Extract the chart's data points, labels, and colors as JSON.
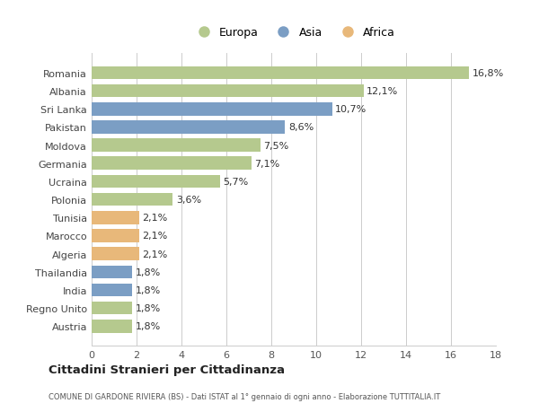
{
  "countries": [
    "Romania",
    "Albania",
    "Sri Lanka",
    "Pakistan",
    "Moldova",
    "Germania",
    "Ucraina",
    "Polonia",
    "Tunisia",
    "Marocco",
    "Algeria",
    "Thailandia",
    "India",
    "Regno Unito",
    "Austria"
  ],
  "values": [
    16.8,
    12.1,
    10.7,
    8.6,
    7.5,
    7.1,
    5.7,
    3.6,
    2.1,
    2.1,
    2.1,
    1.8,
    1.8,
    1.8,
    1.8
  ],
  "continents": [
    "Europa",
    "Europa",
    "Asia",
    "Asia",
    "Europa",
    "Europa",
    "Europa",
    "Europa",
    "Africa",
    "Africa",
    "Africa",
    "Asia",
    "Asia",
    "Europa",
    "Europa"
  ],
  "colors": {
    "Europa": "#b5c98e",
    "Asia": "#7b9ec4",
    "Africa": "#e8b87a"
  },
  "xlim": [
    0,
    18
  ],
  "xticks": [
    0,
    2,
    4,
    6,
    8,
    10,
    12,
    14,
    16,
    18
  ],
  "title": "Cittadini Stranieri per Cittadinanza",
  "subtitle": "COMUNE DI GARDONE RIVIERA (BS) - Dati ISTAT al 1° gennaio di ogni anno - Elaborazione TUTTITALIA.IT",
  "bg_color": "#ffffff",
  "grid_color": "#cccccc",
  "bar_height": 0.72,
  "label_fontsize": 8,
  "ytick_fontsize": 8,
  "xtick_fontsize": 8
}
